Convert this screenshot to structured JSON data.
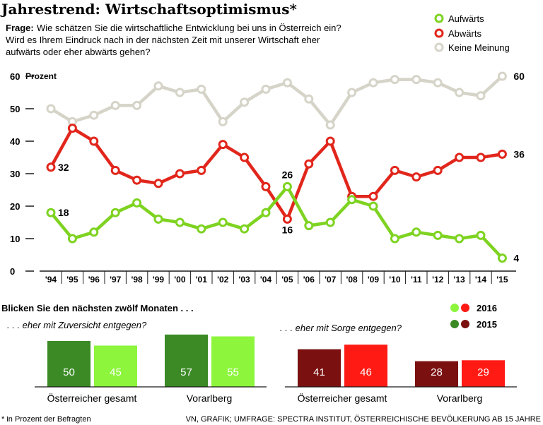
{
  "title": "Jahrestrend: Wirtschaftsoptimismus*",
  "question": {
    "label": "Frage:",
    "line1": "Wie schätzen Sie die wirtschaftliche Entwicklung bei uns in Österreich ein?",
    "line2": "Wird es Ihrem Eindruck nach in der nächsten Zeit mit unserer Wirtschaft eher",
    "line3": "aufwärts oder eher abwärts gehen?"
  },
  "colors": {
    "up": "#7ed321",
    "down": "#e1261c",
    "none": "#d6d4c8",
    "green2016": "#8cf53c",
    "green2015": "#3b8a25",
    "red2016": "#ff1a14",
    "red2015": "#7a1010"
  },
  "chart_data": [
    {
      "type": "line",
      "ylabel": "Prozent",
      "ylim": [
        0,
        60
      ],
      "yticks": [
        0,
        10,
        20,
        30,
        40,
        50,
        60
      ],
      "categories": [
        "'94",
        "'95",
        "'96",
        "'97",
        "'98",
        "'99",
        "'00",
        "'01",
        "'02",
        "'03",
        "'04",
        "'05",
        "'06",
        "'07",
        "'08",
        "'09",
        "'10",
        "'11",
        "'12",
        "'13",
        "'14",
        "'15"
      ],
      "series": [
        {
          "key": "none",
          "name": "Keine Meinung",
          "values": [
            50,
            46,
            48,
            51,
            51,
            57,
            55,
            56,
            46,
            52,
            56,
            58,
            53,
            45,
            55,
            58,
            59,
            59,
            58,
            55,
            54,
            60
          ]
        },
        {
          "key": "down",
          "name": "Abwärts",
          "values": [
            32,
            44,
            40,
            31,
            28,
            27,
            30,
            31,
            39,
            35,
            26,
            16,
            33,
            40,
            23,
            23,
            31,
            29,
            31,
            35,
            35,
            36
          ]
        },
        {
          "key": "up",
          "name": "Aufwärts",
          "values": [
            18,
            10,
            12,
            18,
            21,
            16,
            15,
            13,
            15,
            13,
            18,
            26,
            14,
            15,
            22,
            20,
            10,
            12,
            11,
            10,
            11,
            4
          ]
        }
      ],
      "data_labels": [
        {
          "series": "up",
          "index": 0,
          "text": "18"
        },
        {
          "series": "down",
          "index": 0,
          "text": "32"
        },
        {
          "series": "up",
          "index": 11,
          "text": "26"
        },
        {
          "series": "down",
          "index": 11,
          "text": "16"
        },
        {
          "series": "none",
          "index": 21,
          "text": "60"
        },
        {
          "series": "down",
          "index": 21,
          "text": "36"
        },
        {
          "series": "up",
          "index": 21,
          "text": "4"
        }
      ],
      "legend": [
        "Aufwärts",
        "Abwärts",
        "Keine Meinung"
      ]
    },
    {
      "type": "bar",
      "title": "Blicken Sie den nächsten zwölf Monaten . . .",
      "groups": [
        {
          "subtitle": ". . . eher mit Zuversicht entgegen?",
          "tone": "green",
          "categories": [
            "Österreicher gesamt",
            "Vorarlberg"
          ],
          "series": [
            {
              "name": "2015",
              "values": [
                50,
                57
              ]
            },
            {
              "name": "2016",
              "values": [
                45,
                55
              ]
            }
          ]
        },
        {
          "subtitle": ". . . eher mit Sorge entgegen?",
          "tone": "red",
          "categories": [
            "Österreicher gesamt",
            "Vorarlberg"
          ],
          "series": [
            {
              "name": "2015",
              "values": [
                41,
                28
              ]
            },
            {
              "name": "2016",
              "values": [
                46,
                29
              ]
            }
          ]
        }
      ],
      "legend": [
        "2016",
        "2015"
      ]
    }
  ],
  "footer": {
    "left": "* in Prozent der Befragten",
    "right": "VN, GRAFIK; UMFRAGE: SPECTRA INSTITUT, ÖSTERREICHISCHE BEVÖLKERUNG AB 15 JAHRE"
  }
}
